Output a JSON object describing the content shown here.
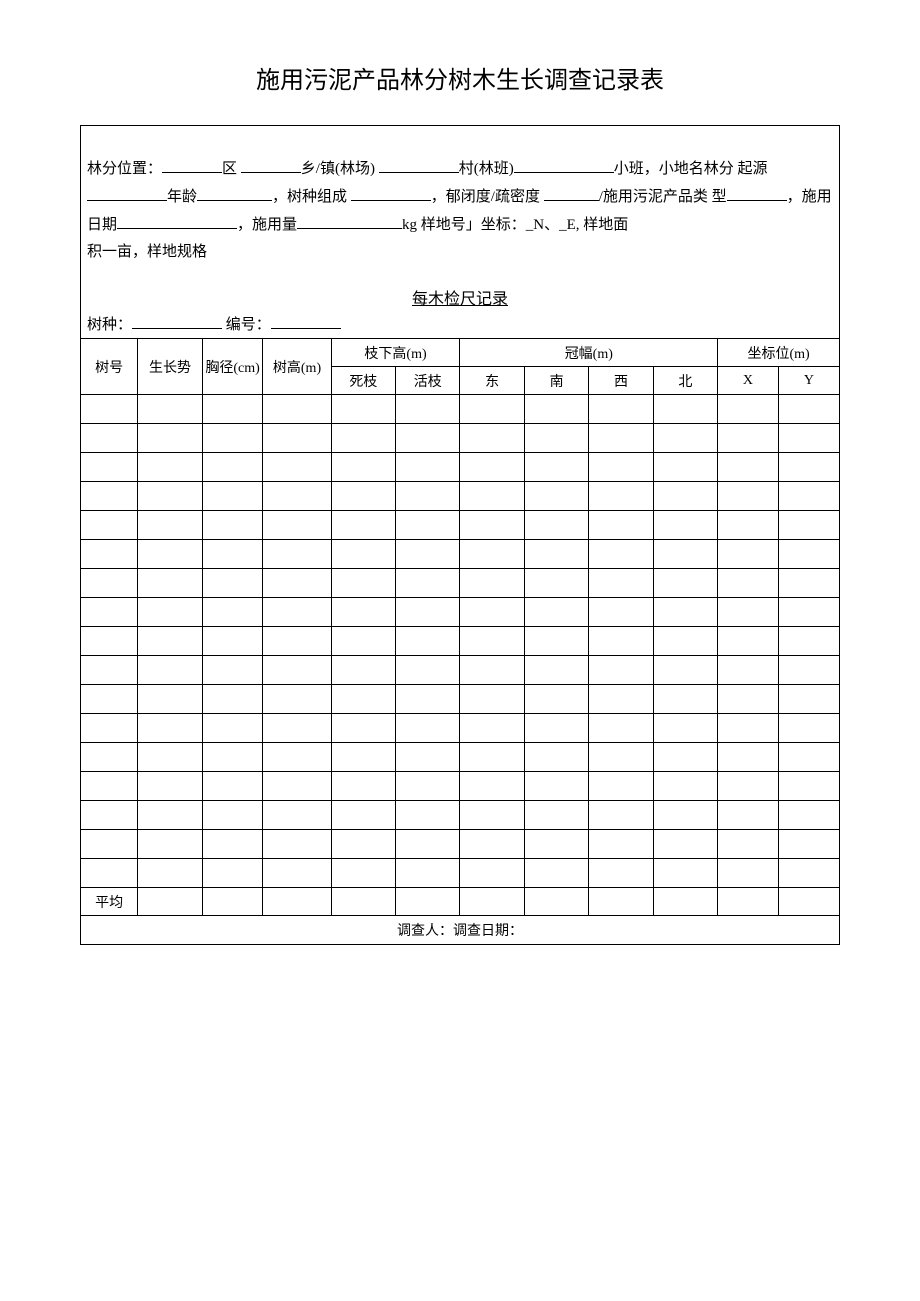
{
  "title": "施用污泥产品林分树木生长调查记录表",
  "header": {
    "line1_pre": "林分位置：",
    "qu": "区",
    "xiangzhen": "乡/镇(林场)",
    "cun": "村(林班)",
    "xiaoban": "小班，小地名林分",
    "line2_pre": "起源",
    "nianling": "年龄",
    "shuzhong": "，树种组成",
    "yubidu": "，郁闭度/疏密度",
    "shiyong": "/施用污泥产品类",
    "line3_pre": "型",
    "riqi": "，施用日期",
    "yongliang": "，施用量",
    "kg_unit": "kg 样地号」坐标：_N、_E, 样地面",
    "line4": "积一亩，样地规格"
  },
  "subtitle": "每木检尺记录",
  "species": {
    "label_species": "树种：",
    "label_id": "编号："
  },
  "columns": {
    "tree_no": "树号",
    "growth": "生长势",
    "diameter": "胸径(cm)",
    "height": "树高(m)",
    "branch_height": "枝下高(m)",
    "branch_dead": "死枝",
    "branch_live": "活枝",
    "crown": "冠幅(m)",
    "crown_e": "东",
    "crown_s": "南",
    "crown_w": "西",
    "crown_n": "北",
    "coord": "坐标位(m)",
    "coord_x": "X",
    "coord_y": "Y"
  },
  "rows_count": 17,
  "avg_label": "平均",
  "footer": "调查人：调查日期：",
  "style": {
    "bg": "#ffffff",
    "text": "#000000",
    "border": "#000000",
    "font": "SimSun",
    "title_size": 24,
    "body_size": 15,
    "cell_size": 14
  }
}
